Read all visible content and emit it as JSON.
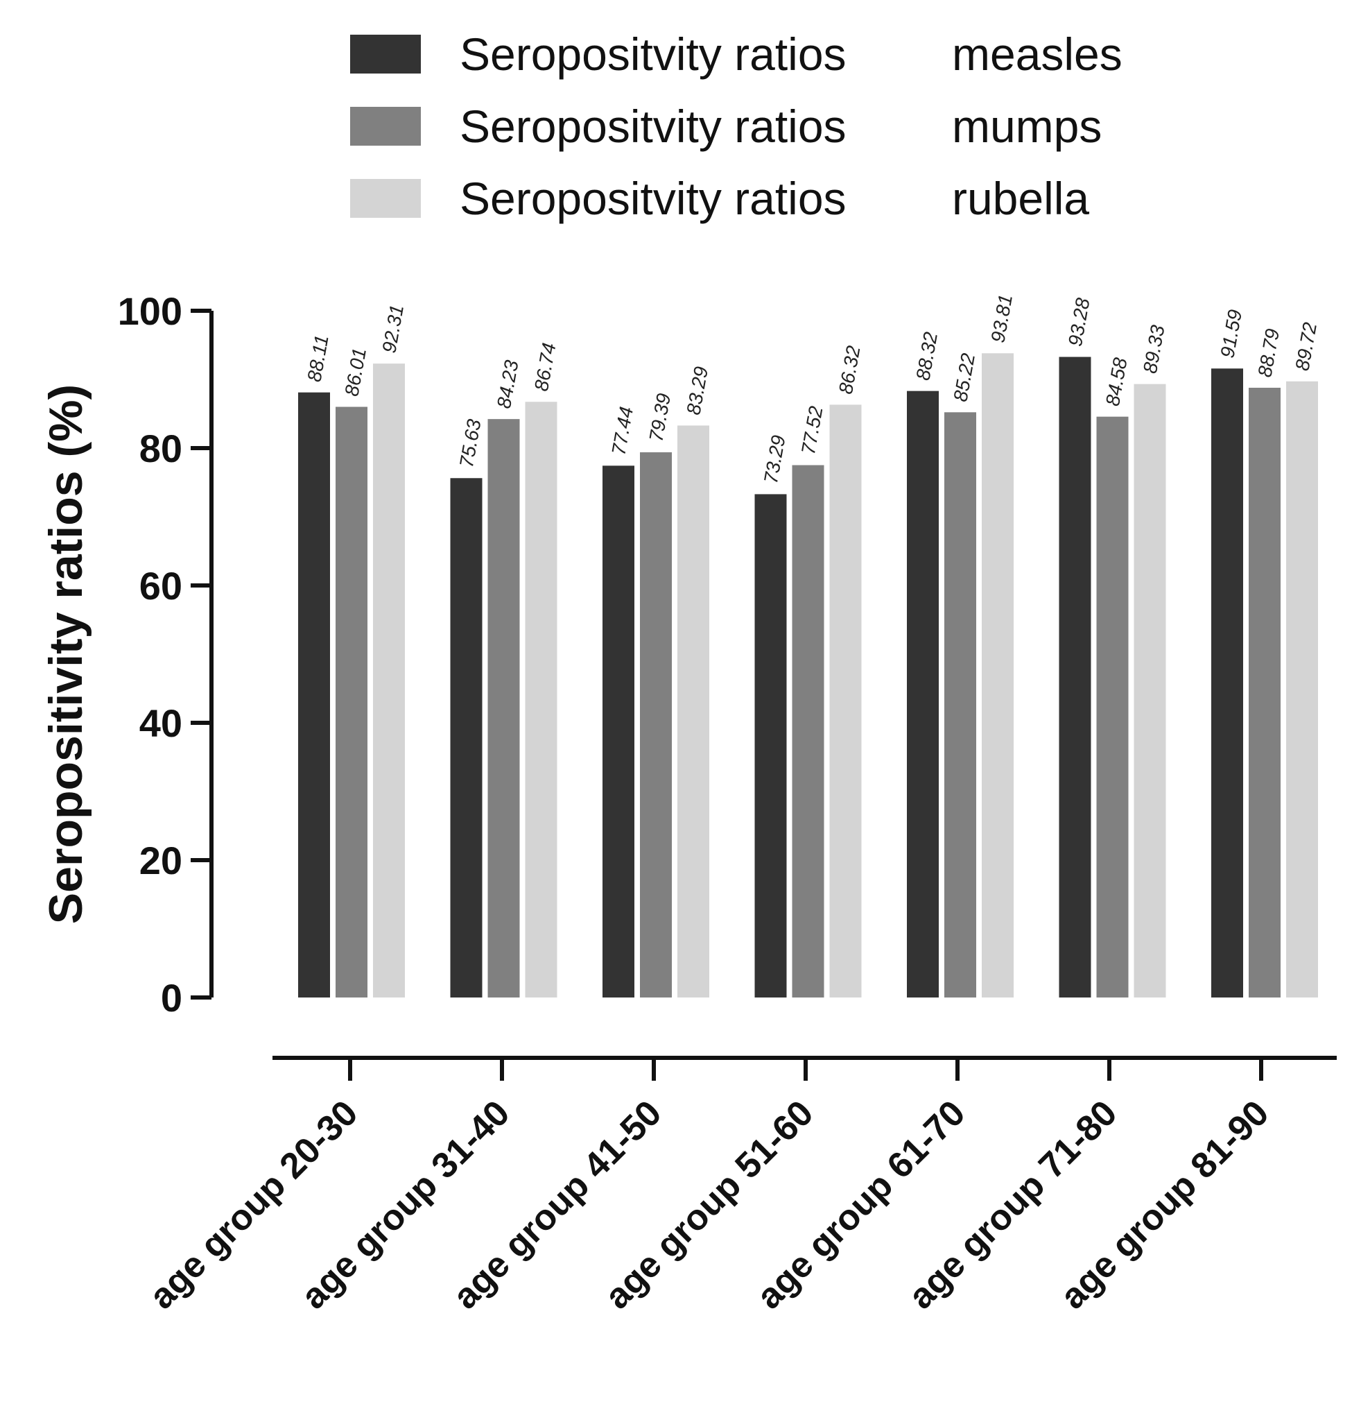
{
  "chart_data": {
    "type": "bar",
    "title": "",
    "xlabel": "",
    "ylabel": "Seropositivity ratios (%)",
    "ylim": [
      0,
      100
    ],
    "yticks": [
      0,
      20,
      40,
      60,
      80,
      100
    ],
    "grid": false,
    "legend_position": "top",
    "categories": [
      "age group 20-30",
      "age group 31-40",
      "age group 41-50",
      "age group 51-60",
      "age group 61-70",
      "age group 71-80",
      "age group 81-90"
    ],
    "series": [
      {
        "name": "Seropositvity ratios",
        "disease": "measles",
        "color": "#333333",
        "values": [
          88.11,
          75.63,
          77.44,
          73.29,
          88.32,
          93.28,
          91.59
        ],
        "labels": [
          "88.11",
          "75.63",
          "77.44",
          "73.29",
          "88.32",
          "93.28",
          "91.59"
        ]
      },
      {
        "name": "Seropositvity ratios",
        "disease": "mumps",
        "color": "#808080",
        "values": [
          86.01,
          84.23,
          79.39,
          77.52,
          85.22,
          84.58,
          88.79
        ],
        "labels": [
          "86.01",
          "84.23",
          "79.39",
          "77.52",
          "85.22",
          "84.58",
          "88.79"
        ]
      },
      {
        "name": "Seropositvity ratios",
        "disease": "rubella",
        "color": "#d4d4d4",
        "values": [
          92.31,
          86.74,
          83.29,
          86.32,
          93.81,
          89.33,
          89.72
        ],
        "labels": [
          "92.31",
          "86.74",
          "83.29",
          "86.32",
          "93.81",
          "89.33",
          "89.72"
        ]
      }
    ]
  }
}
